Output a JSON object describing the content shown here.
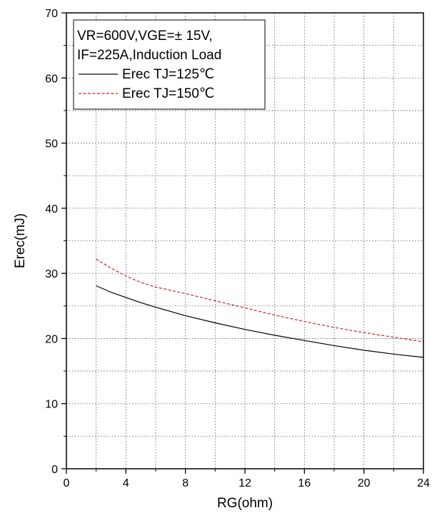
{
  "chart_data": {
    "type": "line",
    "xlabel": "RG(ohm)",
    "ylabel": "Erec(mJ)",
    "xlim": [
      0,
      24
    ],
    "ylim": [
      0,
      70
    ],
    "xticks": [
      0,
      4,
      8,
      12,
      16,
      20,
      24
    ],
    "yticks": [
      0,
      10,
      20,
      30,
      40,
      50,
      60,
      70
    ],
    "grid": true,
    "legend_position": "top-left",
    "annotation_lines": [
      "VR=600V,VGE=± 15V,",
      "IF=225A,Induction Load"
    ],
    "series": [
      {
        "name": "Erec TJ=125℃",
        "color": "#000000",
        "dash": "solid",
        "x": [
          2,
          3,
          4,
          5,
          6,
          8,
          10,
          12,
          14,
          16,
          18,
          20,
          22,
          24
        ],
        "y": [
          28.1,
          27.1,
          26.3,
          25.5,
          24.8,
          23.5,
          22.4,
          21.4,
          20.5,
          19.7,
          18.9,
          18.2,
          17.6,
          17.1
        ]
      },
      {
        "name": "Erec TJ=150℃",
        "color": "#d42020",
        "dash": "dashed",
        "x": [
          2,
          3,
          4,
          5,
          6,
          8,
          10,
          12,
          14,
          16,
          18,
          20,
          22,
          24
        ],
        "y": [
          32.2,
          30.8,
          29.6,
          28.6,
          27.9,
          26.9,
          25.8,
          24.7,
          23.6,
          22.6,
          21.7,
          20.9,
          20.2,
          19.5
        ]
      }
    ]
  }
}
